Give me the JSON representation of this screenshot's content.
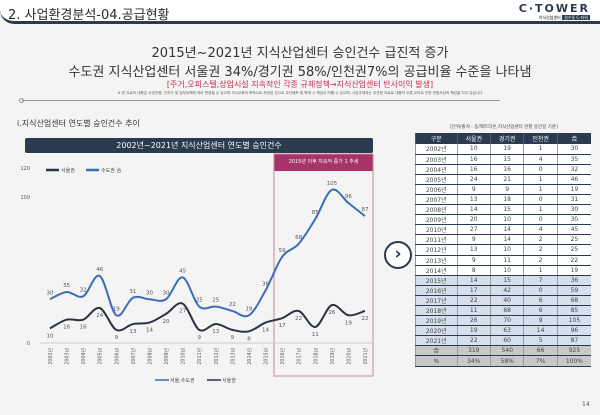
{
  "header": {
    "title": "2. 사업환경분석-04.공급현황",
    "logo": "C·TOWER",
    "logo_sub": "지식산업센터",
    "logo_badge": "성수동 C-타워"
  },
  "headline": {
    "line1": "2015년~2021년 지식산업센터 승인건수 급진적 증가",
    "line2": "수도권 지식산업센터 서울권 34%/경기권 58%/인천권7%의 공급비율 수준을 나타냄",
    "note": "[주거,오피스텔,상업시설 지속적인 각종 규제정책→지식산업센터 반사이익 발생]",
    "disclaimer": "※ 본 자료의 내용은 사업진행, 인허가 및 정부정책에 따라 변경될 수 있으며 지식교육의 목적으로 작성된 것으로 무단배포 및 복제 시 책임이 따를 수 있으며, 사업주체와는 무관한 자료로 내용의 오류,오타로 인한 민형사상의 책임을 지지 않습니다"
  },
  "section_title": "i.지식산업센터 연도별 승인건수 추이",
  "chart_data": {
    "type": "line",
    "title": "2002년~2021년 지식산업센터 연도별 승인건수",
    "highlight_label": "2015년 이후 지속적 증가 1 추세",
    "categories": [
      "2002년",
      "2003년",
      "2004년",
      "2005년",
      "2006년",
      "2007년",
      "2008년",
      "2009년",
      "2010년",
      "2011년",
      "2012년",
      "2013년",
      "2014년",
      "2015년",
      "2016년",
      "2017년",
      "2018년",
      "2019년",
      "2020년",
      "2021년"
    ],
    "series": [
      {
        "name": "서울,수도권",
        "legend_top": "수도권 合",
        "color": "#3d6db5",
        "values": [
          30,
          35,
          32,
          46,
          19,
          31,
          30,
          30,
          45,
          25,
          25,
          22,
          19,
          36,
          59,
          68,
          85,
          105,
          96,
          87
        ]
      },
      {
        "name": "서울권",
        "legend_top": "서울권",
        "color": "#2b3340",
        "values": [
          10,
          16,
          16,
          24,
          9,
          13,
          14,
          20,
          27,
          9,
          13,
          9,
          8,
          14,
          17,
          22,
          11,
          26,
          19,
          22
        ]
      }
    ],
    "yticks": [
      "0",
      "100",
      "120"
    ],
    "ylim": [
      0,
      120
    ]
  },
  "table": {
    "source": "[단위/출처 : 동/팩트리온,지식산업센터 현황 승인일 기준]",
    "headers": [
      "구분",
      "서울권",
      "경기권",
      "인천권",
      "合"
    ],
    "rows": [
      [
        "2002년",
        "10",
        "19",
        "1",
        "30"
      ],
      [
        "2003년",
        "16",
        "15",
        "4",
        "35"
      ],
      [
        "2004년",
        "16",
        "16",
        "0",
        "32"
      ],
      [
        "2005년",
        "24",
        "21",
        "1",
        "46"
      ],
      [
        "2006년",
        "9",
        "9",
        "1",
        "19"
      ],
      [
        "2007년",
        "13",
        "18",
        "0",
        "31"
      ],
      [
        "2008년",
        "14",
        "15",
        "1",
        "30"
      ],
      [
        "2009년",
        "20",
        "10",
        "0",
        "30"
      ],
      [
        "2010년",
        "27",
        "14",
        "4",
        "45"
      ],
      [
        "2011년",
        "9",
        "14",
        "2",
        "25"
      ],
      [
        "2012년",
        "13",
        "10",
        "2",
        "25"
      ],
      [
        "2013년",
        "9",
        "11",
        "2",
        "22"
      ],
      [
        "2014년",
        "8",
        "10",
        "1",
        "19"
      ],
      [
        "2015년",
        "14",
        "15",
        "7",
        "36"
      ],
      [
        "2016년",
        "17",
        "42",
        "0",
        "59"
      ],
      [
        "2017년",
        "22",
        "40",
        "6",
        "68"
      ],
      [
        "2018년",
        "11",
        "68",
        "6",
        "85"
      ],
      [
        "2019년",
        "26",
        "70",
        "9",
        "105"
      ],
      [
        "2020년",
        "19",
        "63",
        "14",
        "96"
      ],
      [
        "2021년",
        "22",
        "60",
        "5",
        "87"
      ]
    ],
    "sum": [
      "合",
      "319",
      "540",
      "66",
      "925"
    ],
    "pct": [
      "%",
      "34%",
      "58%",
      "7%",
      "100%"
    ]
  },
  "arrow_icon": "chevron-right-circle",
  "page_number": "14"
}
